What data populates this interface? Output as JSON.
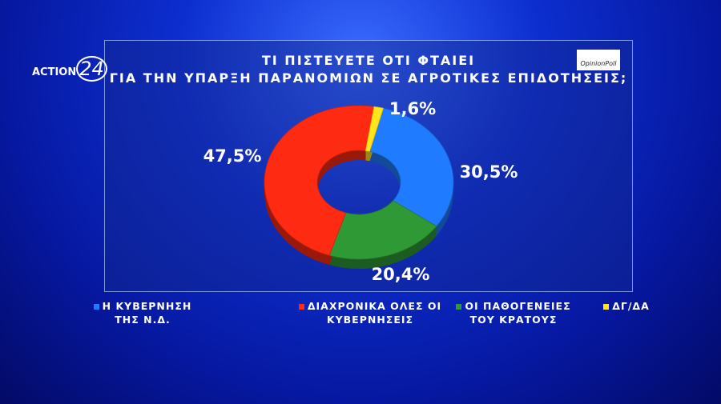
{
  "channel": "ACTION",
  "channel_number": "24",
  "pollster": "OpinionPoll",
  "chart_data": {
    "type": "donut",
    "title": [
      "ΤΙ ΠΙΣΤΕΥΕΤΕ ΟΤΙ ΦΤΑΙΕΙ",
      "ΓΙΑ ΤΗΝ ΥΠΑΡΞΗ ΠΑΡΑΝΟΜΙΩΝ ΣΕ ΑΓΡΟΤΙΚΕΣ ΕΠΙΔΟΤΗΣΕΙΣ;"
    ],
    "categories": [
      "Η ΚΥΒΕΡΝΗΣΗ ΤΗΣ Ν.Δ.",
      "ΔΙΑΧΡΟΝΙΚΑ ΟΛΕΣ ΟΙ ΚΥΒΕΡΝΗΣΕΙΣ",
      "ΟΙ ΠΑΘΟΓΕΝΕΙΕΣ ΤΟΥ ΚΡΑΤΟΥΣ",
      "ΔΓ/ΔΑ"
    ],
    "values": [
      30.5,
      47.5,
      20.4,
      1.6
    ],
    "value_labels": [
      "30,5%",
      "47,5%",
      "20,4%",
      "1,6%"
    ],
    "colors": [
      "#1f7bff",
      "#ff2a12",
      "#2f9a35",
      "#ffe51a"
    ],
    "legend": "bottom"
  }
}
